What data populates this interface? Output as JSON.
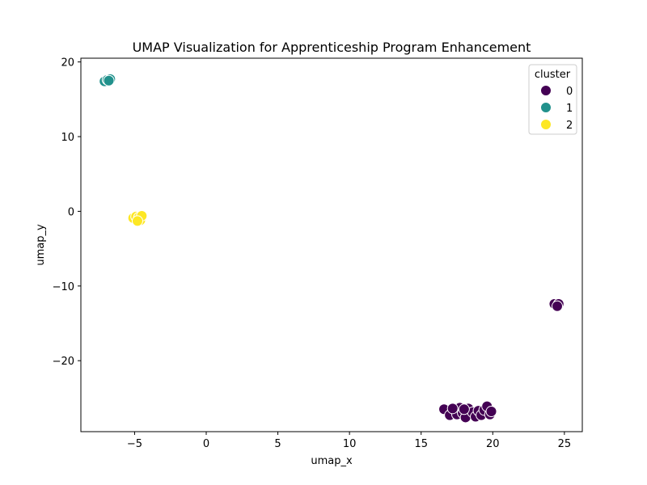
{
  "chart_data": {
    "type": "scatter",
    "title": "UMAP Visualization for Apprenticeship Program Enhancement",
    "xlabel": "umap_x",
    "ylabel": "umap_y",
    "xlim": [
      -8.75,
      26.25
    ],
    "ylim": [
      -29.5,
      20.5
    ],
    "xticks": [
      -5,
      0,
      5,
      10,
      15,
      20,
      25
    ],
    "yticks": [
      -20,
      -10,
      0,
      10,
      20
    ],
    "grid": false,
    "legend": {
      "title": "cluster",
      "placement": "top-right",
      "entries": [
        "0",
        "1",
        "2"
      ]
    },
    "colors": {
      "0": "#440154",
      "1": "#21918c",
      "2": "#fde725"
    },
    "series": [
      {
        "name": "0",
        "points": [
          [
            24.3,
            -12.4
          ],
          [
            24.6,
            -12.4
          ],
          [
            24.5,
            -12.7
          ],
          [
            16.6,
            -26.5
          ],
          [
            17.0,
            -27.3
          ],
          [
            17.3,
            -26.5
          ],
          [
            17.5,
            -27.2
          ],
          [
            17.7,
            -26.3
          ],
          [
            17.9,
            -27.0
          ],
          [
            18.1,
            -27.6
          ],
          [
            18.3,
            -26.4
          ],
          [
            18.6,
            -26.9
          ],
          [
            18.8,
            -27.5
          ],
          [
            19.0,
            -26.7
          ],
          [
            19.2,
            -27.3
          ],
          [
            19.4,
            -26.6
          ],
          [
            19.6,
            -26.1
          ],
          [
            19.8,
            -27.2
          ],
          [
            19.9,
            -26.8
          ],
          [
            17.2,
            -26.4
          ],
          [
            18.0,
            -26.5
          ]
        ]
      },
      {
        "name": "1",
        "points": [
          [
            -7.1,
            17.4
          ],
          [
            -6.9,
            17.6
          ],
          [
            -6.7,
            17.7
          ],
          [
            -6.8,
            17.5
          ]
        ]
      },
      {
        "name": "2",
        "points": [
          [
            -5.1,
            -0.9
          ],
          [
            -4.9,
            -0.7
          ],
          [
            -4.7,
            -0.8
          ],
          [
            -4.6,
            -1.2
          ],
          [
            -4.5,
            -0.6
          ],
          [
            -4.8,
            -1.3
          ]
        ]
      }
    ]
  }
}
